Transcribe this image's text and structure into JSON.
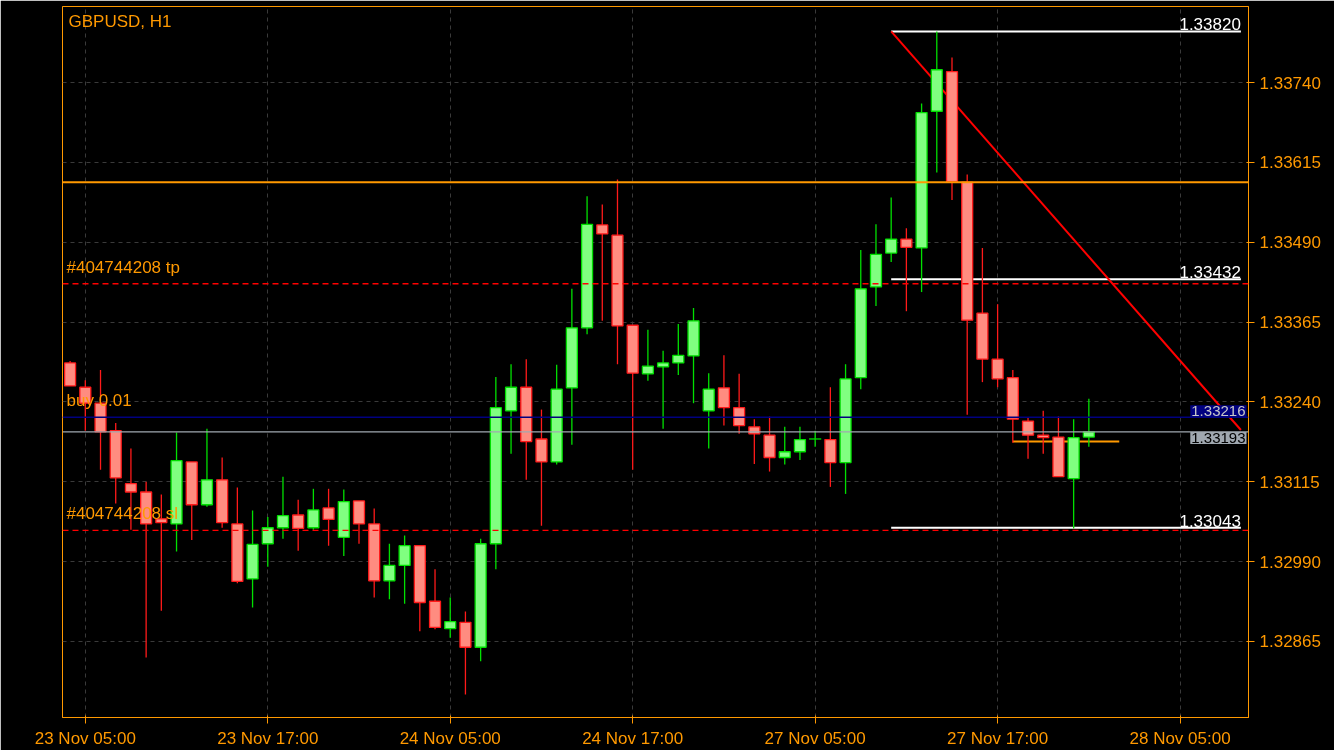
{
  "chart_data": {
    "type": "candlestick",
    "title": "GBPUSD, H1",
    "categories": [
      null,
      "23 Nov 05:00",
      null,
      null,
      null,
      null,
      null,
      null,
      null,
      null,
      null,
      null,
      null,
      "23 Nov 17:00",
      null,
      null,
      null,
      null,
      null,
      null,
      null,
      null,
      null,
      null,
      null,
      "24 Nov 05:00",
      null,
      null,
      null,
      null,
      null,
      null,
      null,
      null,
      null,
      null,
      null,
      "24 Nov 17:00",
      null,
      null,
      null,
      null,
      null,
      null,
      null,
      null,
      null,
      null,
      null,
      "27 Nov 05:00",
      null,
      null,
      null,
      null,
      null,
      null,
      null,
      null,
      null,
      null,
      null,
      "27 Nov 17:00",
      null,
      null,
      null,
      null,
      null,
      null,
      null,
      null,
      null,
      null,
      null,
      "28 Nov 05:00",
      null,
      null,
      null,
      null
    ],
    "ohlc": [
      [
        1.33301,
        1.33304,
        1.33265,
        1.33265
      ],
      [
        1.33263,
        1.33274,
        1.33195,
        1.33238
      ],
      [
        1.33238,
        1.3329,
        1.33134,
        1.33193
      ],
      [
        1.33195,
        1.33207,
        1.33081,
        1.33121
      ],
      [
        1.33112,
        1.33167,
        1.3304,
        1.33099
      ],
      [
        1.33099,
        1.33115,
        1.3284,
        1.33049
      ],
      [
        1.33057,
        1.33095,
        1.32913,
        1.33051
      ],
      [
        1.33049,
        1.33192,
        1.33006,
        1.33148
      ],
      [
        1.33146,
        1.33146,
        1.33024,
        1.33079
      ],
      [
        1.33079,
        1.33198,
        1.33076,
        1.33118
      ],
      [
        1.33118,
        1.33153,
        1.33043,
        1.33051
      ],
      [
        1.33049,
        1.33106,
        1.32956,
        1.32959
      ],
      [
        1.32963,
        1.3307,
        1.32918,
        1.33017
      ],
      [
        1.33018,
        1.3306,
        1.32982,
        1.33043
      ],
      [
        1.33043,
        1.33123,
        1.33026,
        1.33062
      ],
      [
        1.33063,
        1.33087,
        1.33007,
        1.33042
      ],
      [
        1.33043,
        1.33104,
        1.3304,
        1.33071
      ],
      [
        1.33074,
        1.33104,
        1.33015,
        1.33056
      ],
      [
        1.33028,
        1.33103,
        1.32999,
        1.33084
      ],
      [
        1.33085,
        1.33085,
        1.33018,
        1.33049
      ],
      [
        1.33049,
        1.33073,
        1.32934,
        1.3296
      ],
      [
        1.3296,
        1.33018,
        1.32931,
        1.32984
      ],
      [
        1.32984,
        1.33031,
        1.32924,
        1.33015
      ],
      [
        1.33015,
        1.33015,
        1.32881,
        1.32926
      ],
      [
        1.32928,
        1.32978,
        1.32884,
        1.32887
      ],
      [
        1.32885,
        1.32934,
        1.32871,
        1.32896
      ],
      [
        1.32895,
        1.32912,
        1.32782,
        1.32856
      ],
      [
        1.32856,
        1.33026,
        1.32834,
        1.33018
      ],
      [
        1.33018,
        1.33279,
        1.32978,
        1.33231
      ],
      [
        1.33226,
        1.33299,
        1.33159,
        1.33263
      ],
      [
        1.33263,
        1.33307,
        1.33118,
        1.33178
      ],
      [
        1.33182,
        1.33228,
        1.33046,
        1.33146
      ],
      [
        1.33146,
        1.33298,
        1.33142,
        1.3326
      ],
      [
        1.33262,
        1.33417,
        1.33173,
        1.33356
      ],
      [
        1.33356,
        1.33562,
        1.33346,
        1.33518
      ],
      [
        1.33517,
        1.33549,
        1.33367,
        1.33503
      ],
      [
        1.33501,
        1.33588,
        1.33299,
        1.33359
      ],
      [
        1.3336,
        1.3336,
        1.33134,
        1.33285
      ],
      [
        1.33284,
        1.33353,
        1.33273,
        1.33296
      ],
      [
        1.33295,
        1.3332,
        1.33198,
        1.33301
      ],
      [
        1.33301,
        1.33362,
        1.33282,
        1.33313
      ],
      [
        1.33312,
        1.33387,
        1.33238,
        1.33367
      ],
      [
        1.33226,
        1.33285,
        1.33167,
        1.3326
      ],
      [
        1.33262,
        1.33313,
        1.33203,
        1.33231
      ],
      [
        1.33231,
        1.33284,
        1.3319,
        1.33203
      ],
      [
        1.33201,
        1.33213,
        1.33143,
        1.3319
      ],
      [
        1.33188,
        1.33217,
        1.33131,
        1.33153
      ],
      [
        1.33153,
        1.33201,
        1.33142,
        1.33162
      ],
      [
        1.33162,
        1.33201,
        1.33149,
        1.33181
      ],
      [
        1.33182,
        1.33195,
        1.3317,
        1.33182
      ],
      [
        1.33181,
        1.33263,
        1.33107,
        1.33145
      ],
      [
        1.33145,
        1.33299,
        1.33096,
        1.33276
      ],
      [
        1.33278,
        1.33478,
        1.3326,
        1.33417
      ],
      [
        1.3342,
        1.33518,
        1.3339,
        1.33471
      ],
      [
        1.33473,
        1.3356,
        1.33459,
        1.33495
      ],
      [
        1.33495,
        1.33512,
        1.33382,
        1.33482
      ],
      [
        1.33481,
        1.33707,
        1.33412,
        1.33693
      ],
      [
        1.33695,
        1.3382,
        1.33599,
        1.3376
      ],
      [
        1.33757,
        1.33779,
        1.33556,
        1.33585
      ],
      [
        1.33584,
        1.33596,
        1.3322,
        1.33368
      ],
      [
        1.33379,
        1.33481,
        1.33271,
        1.33307
      ],
      [
        1.33307,
        1.33393,
        1.33263,
        1.33276
      ],
      [
        1.33278,
        1.3329,
        1.33176,
        1.33213
      ],
      [
        1.3321,
        1.33215,
        1.33151,
        1.33188
      ],
      [
        1.33188,
        1.33226,
        1.33159,
        1.33184
      ],
      [
        1.33185,
        1.33217,
        1.33123,
        1.33123
      ],
      [
        1.3312,
        1.33213,
        1.33042,
        1.33184
      ],
      [
        1.33185,
        1.33245,
        1.3317,
        1.33193
      ],
      null,
      null,
      null,
      null,
      null,
      null,
      null,
      null,
      null,
      null
    ],
    "series": [
      {
        "type": "line",
        "color": "#ffffff",
        "values": [
          null,
          null,
          null,
          null,
          null,
          null,
          null,
          null,
          null,
          null,
          null,
          null,
          null,
          null,
          null,
          null,
          null,
          null,
          null,
          null,
          null,
          null,
          null,
          null,
          null,
          null,
          null,
          null,
          null,
          null,
          null,
          null,
          null,
          null,
          null,
          null,
          null,
          null,
          null,
          null,
          null,
          null,
          null,
          null,
          null,
          null,
          null,
          null,
          null,
          null,
          null,
          null,
          null,
          null,
          1.3382,
          null,
          null,
          null,
          null,
          null,
          null,
          null,
          null,
          null,
          null,
          null,
          null,
          null,
          null,
          null,
          null,
          null,
          null,
          null,
          null,
          null,
          null,
          1.3382
        ],
        "value_labels": [
          null,
          null,
          null,
          null,
          null,
          null,
          null,
          null,
          null,
          null,
          null,
          null,
          null,
          null,
          null,
          null,
          null,
          null,
          null,
          null,
          null,
          null,
          null,
          null,
          null,
          null,
          null,
          null,
          null,
          null,
          null,
          null,
          null,
          null,
          null,
          null,
          null,
          null,
          null,
          null,
          null,
          null,
          null,
          null,
          null,
          null,
          null,
          null,
          null,
          null,
          null,
          null,
          null,
          null,
          null,
          null,
          null,
          null,
          null,
          null,
          null,
          null,
          null,
          null,
          null,
          null,
          null,
          null,
          null,
          null,
          null,
          null,
          null,
          null,
          null,
          null,
          null,
          "1.33820"
        ]
      },
      {
        "type": "line",
        "color": "#ffffff",
        "values": [
          null,
          null,
          null,
          null,
          null,
          null,
          null,
          null,
          null,
          null,
          null,
          null,
          null,
          null,
          null,
          null,
          null,
          null,
          null,
          null,
          null,
          null,
          null,
          null,
          null,
          null,
          null,
          null,
          null,
          null,
          null,
          null,
          null,
          null,
          null,
          null,
          null,
          null,
          null,
          null,
          null,
          null,
          null,
          null,
          null,
          null,
          null,
          null,
          null,
          null,
          null,
          null,
          null,
          null,
          1.33432,
          null,
          null,
          null,
          null,
          null,
          null,
          null,
          null,
          null,
          null,
          null,
          null,
          null,
          null,
          null,
          null,
          null,
          null,
          null,
          null,
          null,
          null,
          1.33432
        ],
        "value_labels": [
          null,
          null,
          null,
          null,
          null,
          null,
          null,
          null,
          null,
          null,
          null,
          null,
          null,
          null,
          null,
          null,
          null,
          null,
          null,
          null,
          null,
          null,
          null,
          null,
          null,
          null,
          null,
          null,
          null,
          null,
          null,
          null,
          null,
          null,
          null,
          null,
          null,
          null,
          null,
          null,
          null,
          null,
          null,
          null,
          null,
          null,
          null,
          null,
          null,
          null,
          null,
          null,
          null,
          null,
          null,
          null,
          null,
          null,
          null,
          null,
          null,
          null,
          null,
          null,
          null,
          null,
          null,
          null,
          null,
          null,
          null,
          null,
          null,
          null,
          null,
          null,
          null,
          "1.33432"
        ]
      },
      {
        "type": "line",
        "color": "#ffffff",
        "values": [
          null,
          null,
          null,
          null,
          null,
          null,
          null,
          null,
          null,
          null,
          null,
          null,
          null,
          null,
          null,
          null,
          null,
          null,
          null,
          null,
          null,
          null,
          null,
          null,
          null,
          null,
          null,
          null,
          null,
          null,
          null,
          null,
          null,
          null,
          null,
          null,
          null,
          null,
          null,
          null,
          null,
          null,
          null,
          null,
          null,
          null,
          null,
          null,
          null,
          null,
          null,
          null,
          null,
          null,
          1.33043,
          null,
          null,
          null,
          null,
          null,
          null,
          null,
          null,
          null,
          null,
          null,
          null,
          null,
          null,
          null,
          null,
          null,
          null,
          null,
          null,
          null,
          null,
          1.33043
        ],
        "value_labels": [
          null,
          null,
          null,
          null,
          null,
          null,
          null,
          null,
          null,
          null,
          null,
          null,
          null,
          null,
          null,
          null,
          null,
          null,
          null,
          null,
          null,
          null,
          null,
          null,
          null,
          null,
          null,
          null,
          null,
          null,
          null,
          null,
          null,
          null,
          null,
          null,
          null,
          null,
          null,
          null,
          null,
          null,
          null,
          null,
          null,
          null,
          null,
          null,
          null,
          null,
          null,
          null,
          null,
          null,
          null,
          null,
          null,
          null,
          null,
          null,
          null,
          null,
          null,
          null,
          null,
          null,
          null,
          null,
          null,
          null,
          null,
          null,
          null,
          null,
          null,
          null,
          null,
          "1.33043"
        ]
      },
      {
        "type": "line",
        "color": "#ff0000",
        "values": [
          null,
          null,
          null,
          null,
          null,
          null,
          null,
          null,
          null,
          null,
          null,
          null,
          null,
          null,
          null,
          null,
          null,
          null,
          null,
          null,
          null,
          null,
          null,
          null,
          null,
          null,
          null,
          null,
          null,
          null,
          null,
          null,
          null,
          null,
          null,
          null,
          null,
          null,
          null,
          null,
          null,
          null,
          null,
          null,
          null,
          null,
          null,
          null,
          null,
          null,
          null,
          null,
          null,
          null,
          1.3382,
          null,
          null,
          null,
          null,
          null,
          null,
          null,
          null,
          null,
          null,
          null,
          null,
          null,
          null,
          null,
          null,
          null,
          null,
          null,
          null,
          null,
          null,
          1.33196
        ]
      },
      {
        "type": "line",
        "color": "#ff9900",
        "values": [
          null,
          null,
          null,
          null,
          null,
          null,
          null,
          null,
          null,
          null,
          null,
          null,
          null,
          null,
          null,
          null,
          null,
          null,
          null,
          null,
          null,
          null,
          null,
          null,
          null,
          null,
          null,
          null,
          null,
          null,
          null,
          null,
          null,
          null,
          null,
          null,
          null,
          null,
          null,
          null,
          null,
          null,
          null,
          null,
          null,
          null,
          null,
          null,
          null,
          null,
          null,
          null,
          null,
          null,
          null,
          null,
          null,
          null,
          null,
          null,
          null,
          null,
          1.33178,
          null,
          null,
          null,
          null,
          null,
          null,
          1.33178,
          null,
          null,
          null,
          null,
          null,
          null,
          null,
          null
        ]
      }
    ],
    "ref_lines": [
      {
        "axis": "y",
        "value": 1.33584,
        "color": "#ff9900",
        "line_style": "solid"
      },
      {
        "axis": "y",
        "value": 1.33425,
        "label": "#404744208 tp",
        "color": "#ff0000",
        "line_style": "dashed"
      },
      {
        "axis": "y",
        "value": 1.33039,
        "label": "#404744208 sl",
        "color": "#ff0000",
        "line_style": "dashed"
      },
      {
        "axis": "y",
        "value": 1.33216,
        "label": "buy 0.01",
        "color": "#000080",
        "line_style": "solid"
      },
      {
        "axis": "y",
        "value": 1.33193,
        "color": "#a0a8b0",
        "line_style": "solid"
      }
    ],
    "annotations": [
      {
        "text": "1.33216",
        "y": 1.33216
      },
      {
        "text": "1.33193",
        "y": 1.33193
      }
    ],
    "ylim": [
      1.32746,
      1.33859
    ],
    "yticks": [
      {
        "value": 1.32865,
        "label": "1.32865"
      },
      {
        "value": 1.3299,
        "label": "1.32990"
      },
      {
        "value": 1.33115,
        "label": "1.33115"
      },
      {
        "value": 1.3324,
        "label": "1.33240"
      },
      {
        "value": 1.33365,
        "label": "1.33365"
      },
      {
        "value": 1.3349,
        "label": "1.33490"
      },
      {
        "value": 1.33615,
        "label": "1.33615"
      },
      {
        "value": 1.3374,
        "label": "1.33740"
      }
    ],
    "grid": true
  }
}
